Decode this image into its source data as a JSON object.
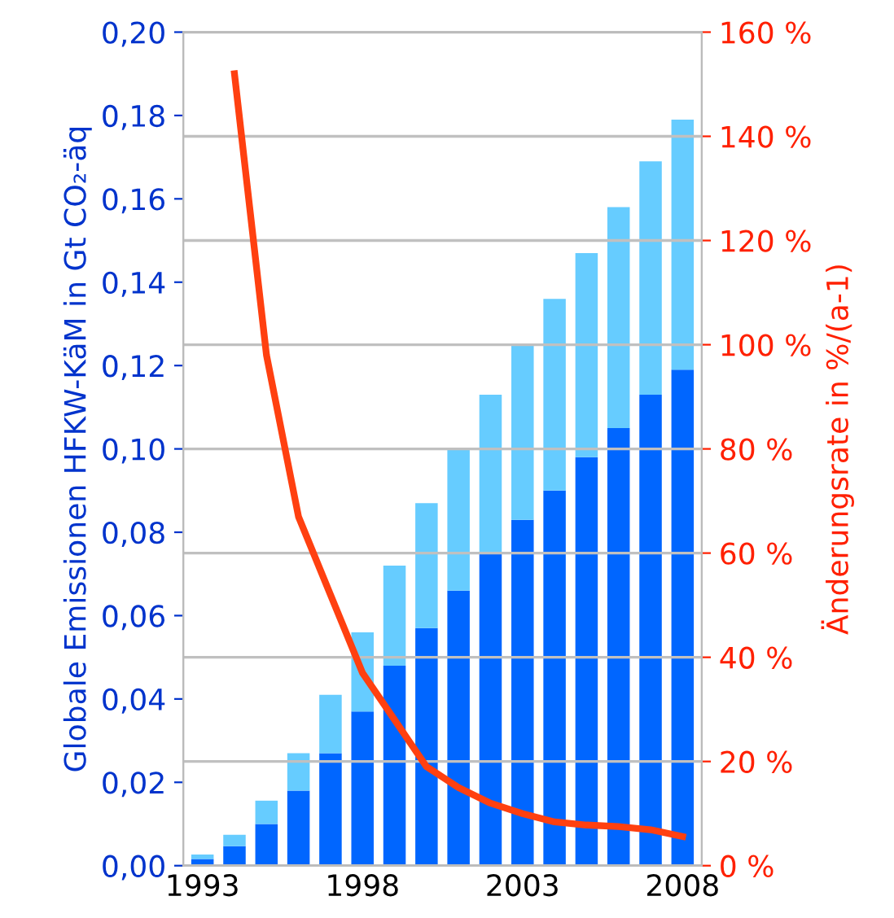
{
  "chart_data": {
    "type": "bar",
    "stacked": true,
    "ylabel": "Globale Emissionen HFKW-KäM in Gt CO₂-äq",
    "y2label": "Änderungsrate in %/(a-1)",
    "categories": [
      "1993",
      null,
      null,
      null,
      null,
      "1998",
      null,
      null,
      null,
      null,
      "2003",
      null,
      null,
      null,
      null,
      "2008"
    ],
    "series": [
      {
        "color": "#0066ff",
        "values": [
          0.0016,
          0.0047,
          0.01,
          0.018,
          0.027,
          0.037,
          0.048,
          0.057,
          0.066,
          0.075,
          0.083,
          0.09,
          0.098,
          0.105,
          0.113,
          0.119
        ]
      },
      {
        "color": "#66ccff",
        "values": [
          0.0011,
          0.0027,
          0.0056,
          0.009,
          0.014,
          0.019,
          0.024,
          0.03,
          0.034,
          0.038,
          0.042,
          0.046,
          0.049,
          0.053,
          0.056,
          0.06
        ]
      },
      {
        "type": "line",
        "axis": "y2",
        "color": "#ff4010",
        "values": [
          null,
          152,
          98,
          67,
          52,
          37,
          28,
          19,
          15,
          12,
          10,
          8.4,
          7.8,
          7.5,
          6.9,
          5.6
        ]
      }
    ],
    "ylim": [
      0,
      0.2
    ],
    "yticks": [
      {
        "value": 0,
        "label": "0,00"
      },
      {
        "value": 0.02,
        "label": "0,02"
      },
      {
        "value": 0.04,
        "label": "0,04"
      },
      {
        "value": 0.06,
        "label": "0,06"
      },
      {
        "value": 0.08,
        "label": "0,08"
      },
      {
        "value": 0.1,
        "label": "0,10"
      },
      {
        "value": 0.12,
        "label": "0,12"
      },
      {
        "value": 0.14,
        "label": "0,14"
      },
      {
        "value": 0.16,
        "label": "0,16"
      },
      {
        "value": 0.18,
        "label": "0,18"
      },
      {
        "value": 0.2,
        "label": "0,20"
      }
    ],
    "y2lim": [
      0,
      160
    ],
    "y2ticks": [
      {
        "value": 0,
        "label": "0 %"
      },
      {
        "value": 20,
        "label": "20 %"
      },
      {
        "value": 40,
        "label": "40 %"
      },
      {
        "value": 60,
        "label": "60 %"
      },
      {
        "value": 80,
        "label": "80 %"
      },
      {
        "value": 100,
        "label": "100 %"
      },
      {
        "value": 120,
        "label": "120 %"
      },
      {
        "value": 140,
        "label": "140 %"
      },
      {
        "value": 160,
        "label": "160 %"
      }
    ],
    "grid": "y2"
  }
}
